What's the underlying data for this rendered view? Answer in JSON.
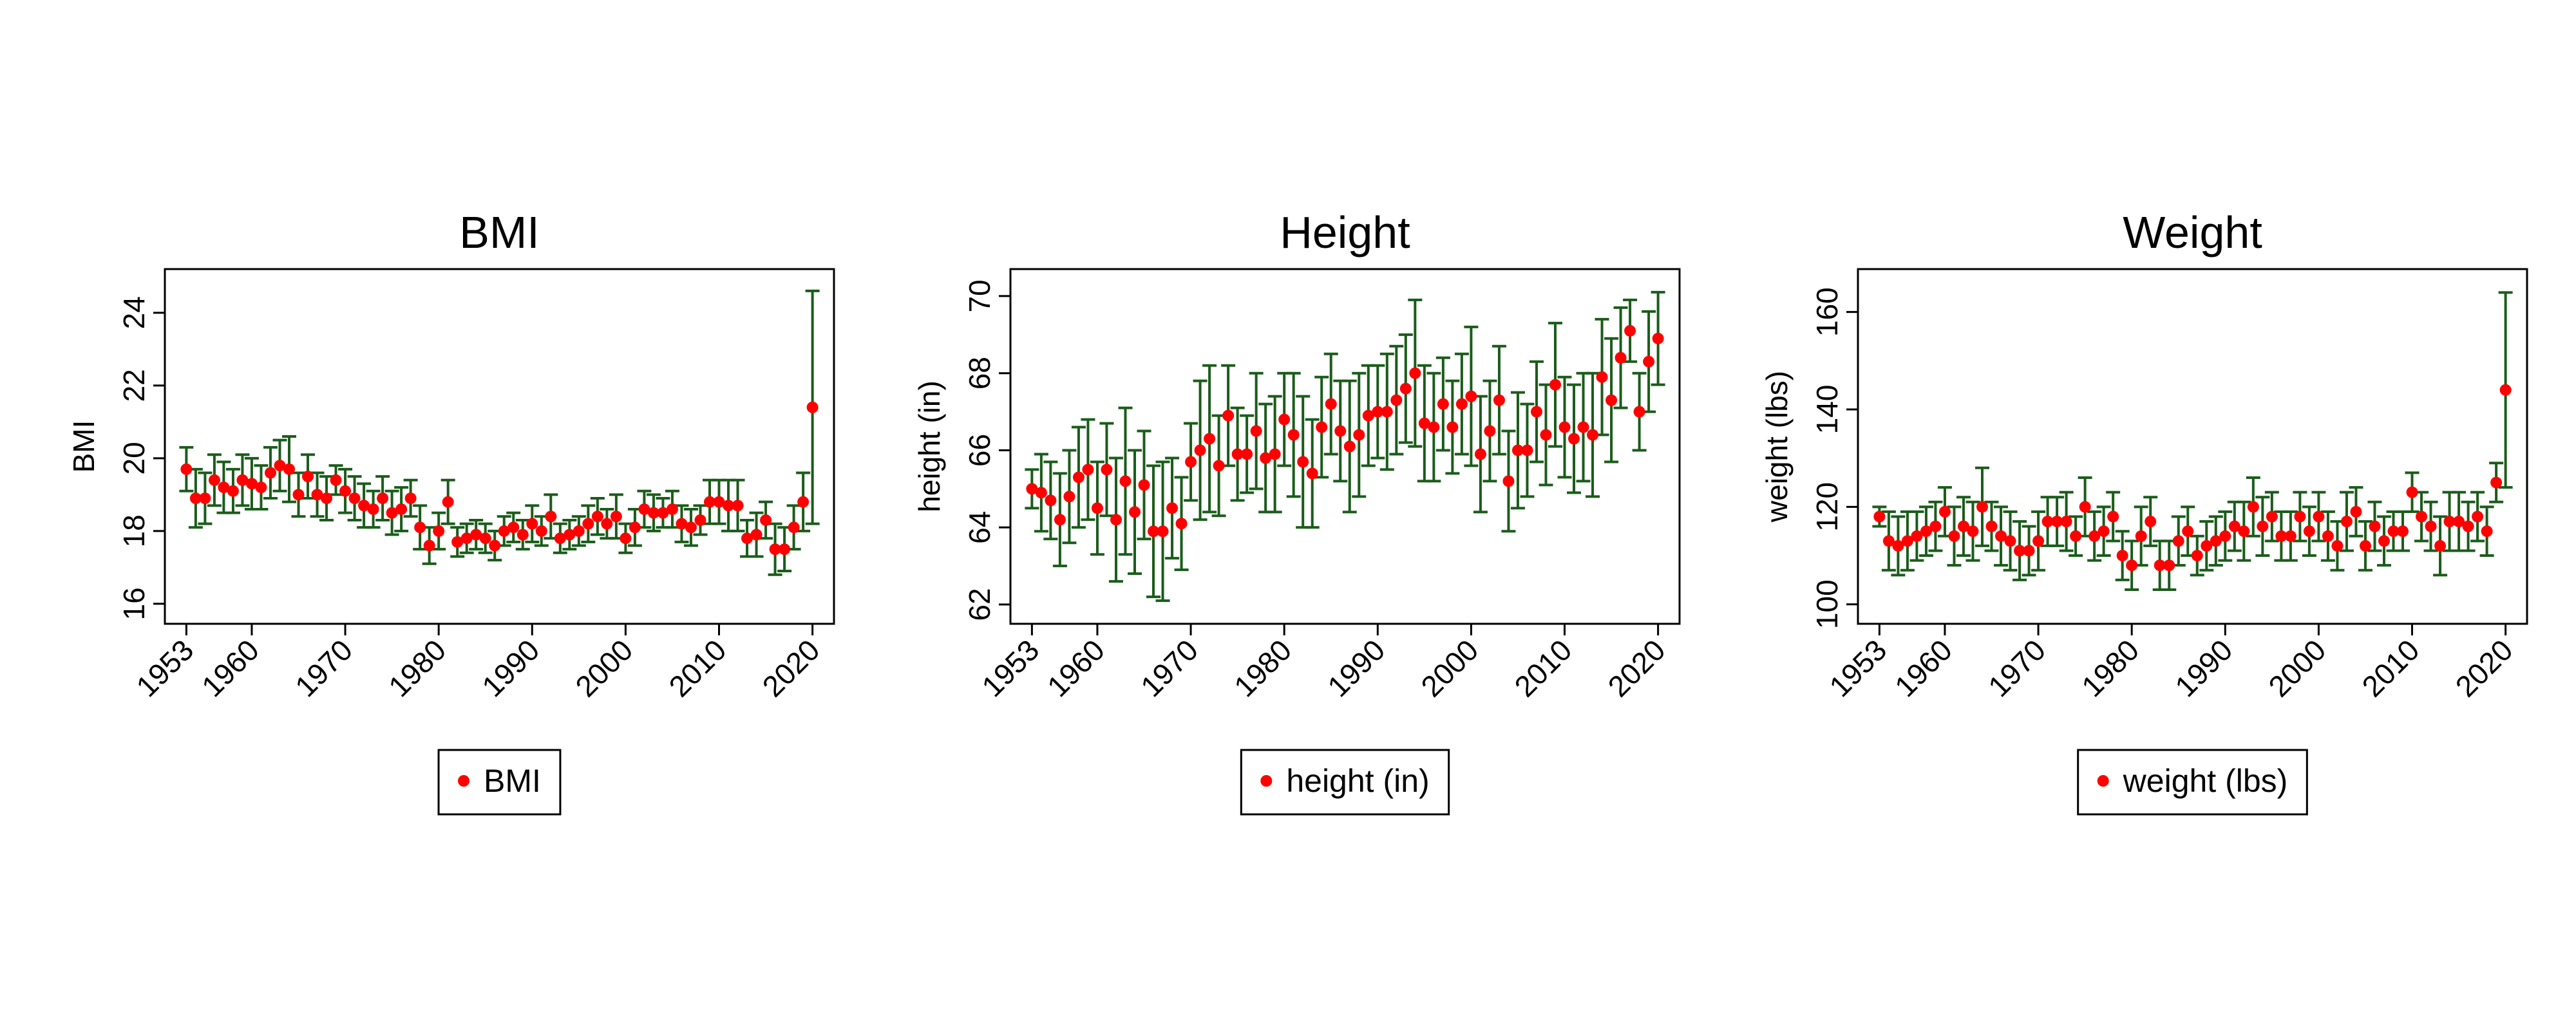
{
  "chart_data": [
    {
      "type": "scatter",
      "title": "BMI",
      "ylabel": "BMI",
      "x": [
        1953,
        1954,
        1955,
        1956,
        1957,
        1958,
        1959,
        1960,
        1961,
        1962,
        1963,
        1964,
        1965,
        1966,
        1967,
        1968,
        1969,
        1970,
        1971,
        1972,
        1973,
        1974,
        1975,
        1976,
        1977,
        1978,
        1979,
        1980,
        1981,
        1982,
        1983,
        1984,
        1985,
        1986,
        1987,
        1988,
        1989,
        1990,
        1991,
        1992,
        1993,
        1994,
        1995,
        1996,
        1997,
        1998,
        1999,
        2000,
        2001,
        2002,
        2003,
        2004,
        2005,
        2006,
        2007,
        2008,
        2009,
        2010,
        2011,
        2012,
        2013,
        2014,
        2015,
        2016,
        2017,
        2018,
        2019,
        2020
      ],
      "series": [
        {
          "name": "BMI",
          "color": "#ff0000",
          "error_color": "#1a5c1a",
          "values": [
            19.7,
            18.9,
            18.9,
            19.4,
            19.2,
            19.1,
            19.4,
            19.3,
            19.2,
            19.6,
            19.8,
            19.7,
            19.0,
            19.5,
            19.0,
            18.9,
            19.4,
            19.1,
            18.9,
            18.7,
            18.6,
            18.9,
            18.5,
            18.6,
            18.9,
            18.1,
            17.6,
            18.0,
            18.8,
            17.7,
            17.8,
            17.9,
            17.8,
            17.6,
            18.0,
            18.1,
            17.9,
            18.2,
            18.0,
            18.4,
            17.8,
            17.9,
            18.0,
            18.2,
            18.4,
            18.2,
            18.4,
            17.8,
            18.1,
            18.6,
            18.5,
            18.5,
            18.6,
            18.2,
            18.1,
            18.3,
            18.8,
            18.8,
            18.7,
            18.7,
            17.8,
            17.9,
            18.3,
            17.5,
            17.5,
            18.1,
            18.8,
            21.4
          ],
          "errors": [
            0.6,
            0.8,
            0.7,
            0.7,
            0.7,
            0.6,
            0.7,
            0.7,
            0.6,
            0.7,
            0.7,
            0.9,
            0.6,
            0.6,
            0.6,
            0.6,
            0.4,
            0.6,
            0.6,
            0.6,
            0.5,
            0.6,
            0.6,
            0.6,
            0.5,
            0.6,
            0.5,
            0.5,
            0.6,
            0.4,
            0.4,
            0.4,
            0.4,
            0.4,
            0.4,
            0.4,
            0.4,
            0.5,
            0.4,
            0.6,
            0.4,
            0.4,
            0.4,
            0.5,
            0.5,
            0.4,
            0.6,
            0.4,
            0.5,
            0.5,
            0.5,
            0.4,
            0.5,
            0.5,
            0.5,
            0.4,
            0.6,
            0.6,
            0.7,
            0.7,
            0.5,
            0.6,
            0.5,
            0.7,
            0.6,
            0.6,
            0.8,
            3.2
          ]
        }
      ],
      "xlim": [
        1950.7,
        2022.3
      ],
      "xticks": [
        1953,
        1960,
        1970,
        1980,
        1990,
        2000,
        2010,
        2020
      ],
      "ylim": [
        15.45,
        25.2
      ],
      "yticks": [
        16,
        18,
        20,
        22,
        24
      ]
    },
    {
      "type": "scatter",
      "title": "Height",
      "ylabel": "height (in)",
      "x": [
        1953,
        1954,
        1955,
        1956,
        1957,
        1958,
        1959,
        1960,
        1961,
        1962,
        1963,
        1964,
        1965,
        1966,
        1967,
        1968,
        1969,
        1970,
        1971,
        1972,
        1973,
        1974,
        1975,
        1976,
        1977,
        1978,
        1979,
        1980,
        1981,
        1982,
        1983,
        1984,
        1985,
        1986,
        1987,
        1988,
        1989,
        1990,
        1991,
        1992,
        1993,
        1994,
        1995,
        1996,
        1997,
        1998,
        1999,
        2000,
        2001,
        2002,
        2003,
        2004,
        2005,
        2006,
        2007,
        2008,
        2009,
        2010,
        2011,
        2012,
        2013,
        2014,
        2015,
        2016,
        2017,
        2018,
        2019,
        2020
      ],
      "series": [
        {
          "name": "height (in)",
          "color": "#ff0000",
          "error_color": "#1a5c1a",
          "values": [
            65.0,
            64.9,
            64.7,
            64.2,
            64.8,
            65.3,
            65.5,
            64.5,
            65.5,
            64.2,
            65.2,
            64.4,
            65.1,
            63.9,
            63.9,
            64.5,
            64.1,
            65.7,
            66.0,
            66.3,
            65.6,
            66.9,
            65.9,
            65.9,
            66.5,
            65.8,
            65.9,
            66.8,
            66.4,
            65.7,
            65.4,
            66.6,
            67.2,
            66.5,
            66.1,
            66.4,
            66.9,
            67.0,
            67.0,
            67.3,
            67.6,
            68.0,
            66.7,
            66.6,
            67.2,
            66.6,
            67.2,
            67.4,
            65.9,
            66.5,
            67.3,
            65.2,
            66.0,
            66.0,
            67.0,
            66.4,
            67.7,
            66.6,
            66.3,
            66.6,
            66.4,
            67.9,
            67.3,
            68.4,
            69.1,
            67.0,
            68.3,
            68.9
          ],
          "errors": [
            0.5,
            1.0,
            1.0,
            1.2,
            1.2,
            1.3,
            1.3,
            1.2,
            1.2,
            1.6,
            1.9,
            1.6,
            1.4,
            1.7,
            1.8,
            1.3,
            1.2,
            1.0,
            1.8,
            1.9,
            1.3,
            1.3,
            1.2,
            1.0,
            1.5,
            1.4,
            1.5,
            1.2,
            1.6,
            1.7,
            1.4,
            1.3,
            1.3,
            1.3,
            1.7,
            1.6,
            1.3,
            1.2,
            1.5,
            1.4,
            1.4,
            1.9,
            1.5,
            1.4,
            1.2,
            1.2,
            1.3,
            1.8,
            1.5,
            1.3,
            1.4,
            1.3,
            1.5,
            1.2,
            1.3,
            1.3,
            1.6,
            1.3,
            1.4,
            1.4,
            1.6,
            1.5,
            1.6,
            1.3,
            0.8,
            1.0,
            1.3,
            1.2
          ]
        }
      ],
      "xlim": [
        1950.7,
        2022.3
      ],
      "xticks": [
        1953,
        1960,
        1970,
        1980,
        1990,
        2000,
        2010,
        2020
      ],
      "ylim": [
        61.5,
        70.7
      ],
      "yticks": [
        62,
        64,
        66,
        68,
        70
      ]
    },
    {
      "type": "scatter",
      "title": "Weight",
      "ylabel": "weight (lbs)",
      "x": [
        1953,
        1954,
        1955,
        1956,
        1957,
        1958,
        1959,
        1960,
        1961,
        1962,
        1963,
        1964,
        1965,
        1966,
        1967,
        1968,
        1969,
        1970,
        1971,
        1972,
        1973,
        1974,
        1975,
        1976,
        1977,
        1978,
        1979,
        1980,
        1981,
        1982,
        1983,
        1984,
        1985,
        1986,
        1987,
        1988,
        1989,
        1990,
        1991,
        1992,
        1993,
        1994,
        1995,
        1996,
        1997,
        1998,
        1999,
        2000,
        2001,
        2002,
        2003,
        2004,
        2005,
        2006,
        2007,
        2008,
        2009,
        2010,
        2011,
        2012,
        2013,
        2014,
        2015,
        2016,
        2017,
        2018,
        2019,
        2020
      ],
      "series": [
        {
          "name": "weight (lbs)",
          "color": "#ff0000",
          "error_color": "#1a5c1a",
          "values": [
            118,
            113,
            112,
            113,
            114,
            115,
            116,
            119,
            114,
            116,
            115,
            120,
            116,
            114,
            113,
            111,
            111,
            113,
            117,
            117,
            117,
            114,
            120,
            114,
            115,
            118,
            110,
            108,
            114,
            117,
            108,
            108,
            113,
            115,
            110,
            112,
            113,
            114,
            116,
            115,
            120,
            116,
            118,
            114,
            114,
            118,
            115,
            118,
            114,
            112,
            117,
            119,
            112,
            116,
            113,
            115,
            115,
            123,
            118,
            116,
            112,
            117,
            117,
            116,
            118,
            115,
            125,
            144
          ],
          "errors": [
            2,
            6,
            6,
            6,
            5,
            5,
            5,
            5,
            6,
            6,
            6,
            8,
            5,
            6,
            6,
            6,
            5,
            6,
            5,
            5,
            6,
            4,
            6,
            5,
            5,
            5,
            5,
            5,
            6,
            5,
            5,
            5,
            5,
            5,
            4,
            5,
            5,
            5,
            5,
            6,
            6,
            6,
            5,
            5,
            5,
            5,
            5,
            5,
            5,
            5,
            6,
            5,
            5,
            5,
            5,
            4,
            4,
            4,
            5,
            5,
            6,
            6,
            6,
            5,
            5,
            5,
            4,
            20
          ]
        }
      ],
      "xlim": [
        1950.7,
        2022.3
      ],
      "xticks": [
        1953,
        1960,
        1970,
        1980,
        1990,
        2000,
        2010,
        2020
      ],
      "ylim": [
        96,
        168.8
      ],
      "yticks": [
        100,
        120,
        140,
        160
      ]
    }
  ]
}
